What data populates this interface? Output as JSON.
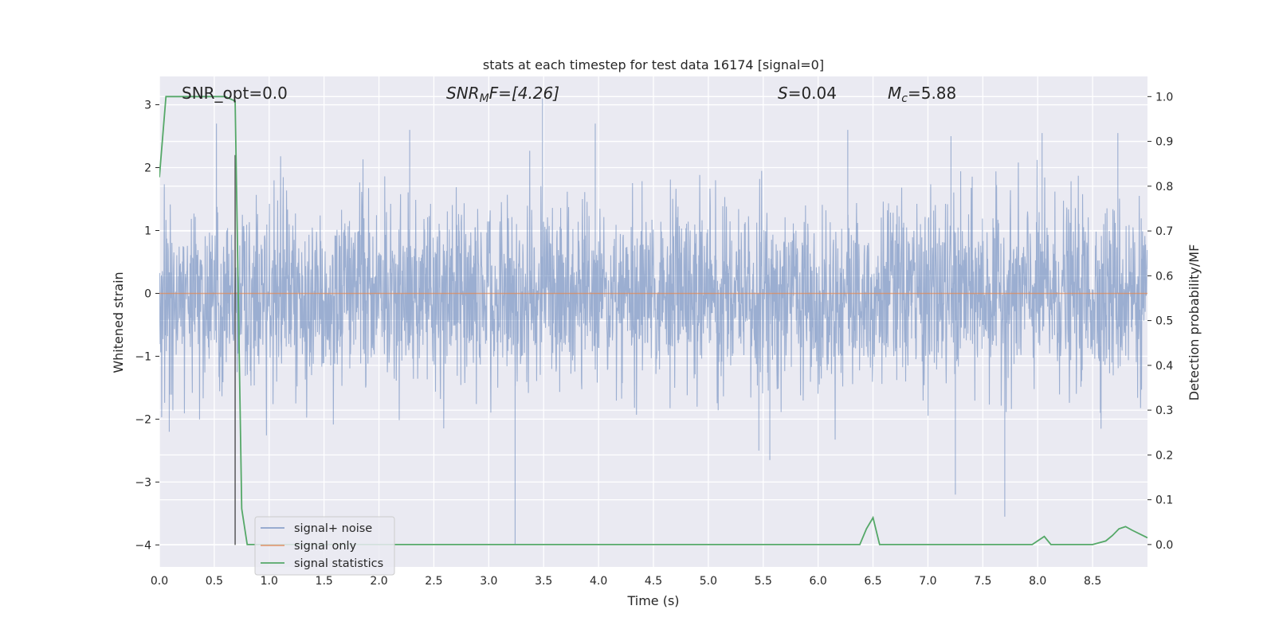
{
  "chart_data": {
    "type": "line",
    "title": "stats at each timestep for test data 16174 [signal=0]",
    "xlabel": "Time (s)",
    "ylabel": "Whitened strain",
    "y2label": "Detection probability/MF",
    "xlim": [
      0.0,
      9.0
    ],
    "ylim": [
      -4.35,
      3.45
    ],
    "y2lim": [
      -0.05,
      1.045
    ],
    "x_ticks": [
      "0.0",
      "0.5",
      "1.0",
      "1.5",
      "2.0",
      "2.5",
      "3.0",
      "3.5",
      "4.0",
      "4.5",
      "5.0",
      "5.5",
      "6.0",
      "6.5",
      "7.0",
      "7.5",
      "8.0",
      "8.5"
    ],
    "y_ticks": [
      "−4",
      "−3",
      "−2",
      "−1",
      "0",
      "1",
      "2",
      "3"
    ],
    "y2_ticks": [
      "0.0",
      "0.1",
      "0.2",
      "0.3",
      "0.4",
      "0.5",
      "0.6",
      "0.7",
      "0.8",
      "0.9",
      "1.0"
    ],
    "grid": true,
    "legend_position": "lower-left",
    "annotations": {
      "snr_opt": "SNR_opt=0.0",
      "snr_mf_sym": "SNR",
      "snr_mf_sub": "M",
      "snr_mf_tail": "F=[4.26]",
      "s_sym": "S",
      "s_val": "=0.04",
      "mc_sym": "M",
      "mc_sub": "c",
      "mc_val": "=5.88"
    },
    "vline_x": 0.69,
    "vline_y": [
      -4.0,
      2.2
    ],
    "series": [
      {
        "name": "signal+ noise",
        "color": "#4c72b0",
        "noise_amplitude": 1.3,
        "spikes": [
          {
            "x": 3.24,
            "y": -4.0
          },
          {
            "x": 3.49,
            "y": 3.1
          },
          {
            "x": 7.7,
            "y": -3.55
          },
          {
            "x": 7.25,
            "y": -3.2
          },
          {
            "x": 5.56,
            "y": -2.65
          },
          {
            "x": 2.28,
            "y": 2.6
          },
          {
            "x": 3.97,
            "y": 2.7
          },
          {
            "x": 6.27,
            "y": 2.6
          },
          {
            "x": 8.04,
            "y": 2.55
          },
          {
            "x": 8.73,
            "y": 2.55
          },
          {
            "x": 0.52,
            "y": 2.7
          },
          {
            "x": 0.09,
            "y": -2.2
          },
          {
            "x": 7.21,
            "y": 2.5
          },
          {
            "x": 5.46,
            "y": -2.5
          }
        ]
      },
      {
        "name": "signal only",
        "color": "#dd8452",
        "y": 0.0
      },
      {
        "name": "signal statistics",
        "color": "#55a868",
        "axis": "right",
        "x": [
          0.0,
          0.06,
          0.12,
          0.6,
          0.69,
          0.75,
          0.8,
          0.9,
          1.5,
          2.5,
          3.5,
          4.5,
          5.0,
          5.5,
          6.0,
          6.3,
          6.38,
          6.44,
          6.5,
          6.56,
          6.65,
          6.9,
          7.0,
          7.4,
          7.6,
          7.95,
          8.06,
          8.12,
          8.2,
          8.5,
          8.62,
          8.68,
          8.74,
          8.8,
          8.86,
          9.0
        ],
        "y": [
          0.82,
          1.0,
          1.0,
          1.0,
          0.99,
          0.08,
          0.0,
          0.0,
          0.0,
          0.0,
          0.0,
          0.0,
          0.0,
          0.0,
          0.0,
          0.0,
          0.0,
          0.035,
          0.06,
          0.0,
          0.0,
          0.0,
          0.0,
          0.0,
          0.0,
          0.0,
          0.018,
          0.0,
          0.0,
          0.0,
          0.008,
          0.02,
          0.035,
          0.04,
          0.032,
          0.015
        ]
      }
    ]
  }
}
